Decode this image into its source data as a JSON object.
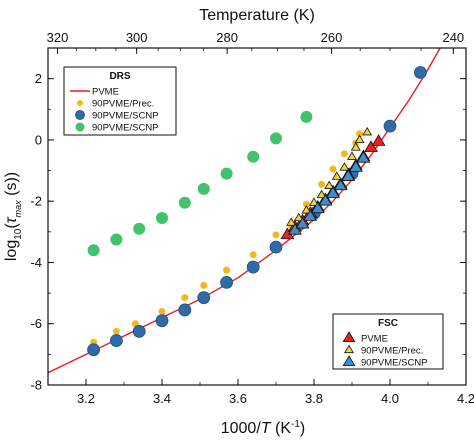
{
  "chart_data": {
    "type": "scatter",
    "title": "",
    "xlabel_parts": [
      "1000/",
      "T",
      " (K",
      "-1",
      ")"
    ],
    "ylabel_parts": [
      "log",
      "10",
      "(",
      "τ",
      "max",
      " (s))"
    ],
    "top_xlabel": "Temperature (K)",
    "xlim": [
      3.1,
      4.2
    ],
    "ylim": [
      -8,
      3
    ],
    "x_ticks": [
      3.2,
      3.4,
      3.6,
      3.8,
      4.0,
      4.2
    ],
    "x_tick_labels": [
      "3.2",
      "3.4",
      "3.6",
      "3.8",
      "4.0",
      "4.2"
    ],
    "y_ticks": [
      -8,
      -6,
      -4,
      -2,
      0,
      2
    ],
    "y_tick_labels": [
      "-8",
      "-6",
      "-4",
      "-2",
      "0",
      "2"
    ],
    "top_ticks": [
      320,
      300,
      280,
      260,
      240
    ],
    "top_tick_labels": [
      "320",
      "300",
      "280",
      "260",
      "240"
    ],
    "grid": false,
    "legends": [
      {
        "title": "DRS",
        "placement": "top-left",
        "entries": [
          "PVME",
          "90PVME/Prec.",
          "90PVME/SCNP",
          "90PVME/SCNP"
        ]
      },
      {
        "title": "FSC",
        "placement": "bottom-right",
        "entries": [
          "PVME",
          "90PVME/Prec.",
          "90PVME/SCNP"
        ]
      }
    ],
    "series": [
      {
        "name": "PVME",
        "group": "DRS",
        "kind": "line",
        "color": "#e8201e",
        "x": [
          3.1,
          3.2,
          3.3,
          3.4,
          3.5,
          3.6,
          3.7,
          3.8,
          3.85,
          3.9,
          3.95,
          4.0,
          4.05,
          4.1,
          4.15
        ],
        "y": [
          -7.6,
          -7.0,
          -6.4,
          -5.8,
          -5.2,
          -4.5,
          -3.6,
          -2.6,
          -2.0,
          -1.3,
          -0.5,
          0.4,
          1.3,
          2.3,
          3.4
        ]
      },
      {
        "name": "90PVME/Prec.",
        "group": "DRS",
        "kind": "circle",
        "color": "#f5b81c",
        "size": "small",
        "x": [
          3.22,
          3.28,
          3.33,
          3.4,
          3.46,
          3.51,
          3.57,
          3.64,
          3.7,
          3.74,
          3.78,
          3.82,
          3.85,
          3.88,
          3.91,
          3.92
        ],
        "y": [
          -6.6,
          -6.25,
          -6.0,
          -5.6,
          -5.15,
          -4.75,
          -4.25,
          -3.75,
          -3.1,
          -2.8,
          -2.1,
          -1.45,
          -0.95,
          -0.45,
          -0.1,
          0.2
        ]
      },
      {
        "name": "90PVME/SCNP",
        "group": "DRS",
        "kind": "circle",
        "color": "#2f6ba8",
        "size": "large",
        "x": [
          3.22,
          3.28,
          3.34,
          3.4,
          3.46,
          3.51,
          3.57,
          3.64,
          3.7,
          3.8,
          3.9,
          4.0,
          4.08
        ],
        "y": [
          -6.85,
          -6.55,
          -6.25,
          -5.9,
          -5.55,
          -5.15,
          -4.65,
          -4.15,
          -3.5,
          -2.4,
          -1.1,
          0.45,
          2.2
        ]
      },
      {
        "name": "90PVME/SCNP",
        "group": "DRS",
        "kind": "circle",
        "color": "#3fc46b",
        "size": "large",
        "x": [
          3.22,
          3.28,
          3.34,
          3.4,
          3.46,
          3.51,
          3.57,
          3.64,
          3.7,
          3.78
        ],
        "y": [
          -3.6,
          -3.25,
          -2.9,
          -2.55,
          -2.05,
          -1.6,
          -1.1,
          -0.55,
          0.05,
          0.75
        ]
      },
      {
        "name": "PVME",
        "group": "FSC",
        "kind": "triangle",
        "color": "#e8201e",
        "size": "large",
        "x": [
          3.73,
          3.75,
          3.77,
          3.79,
          3.81,
          3.83,
          3.85,
          3.87,
          3.89,
          3.91,
          3.93,
          3.95,
          3.97
        ],
        "y": [
          -3.1,
          -2.85,
          -2.65,
          -2.4,
          -2.2,
          -1.95,
          -1.7,
          -1.45,
          -1.15,
          -0.85,
          -0.55,
          -0.25,
          -0.05
        ]
      },
      {
        "name": "90PVME/Prec.",
        "group": "FSC",
        "kind": "triangle",
        "color": "#f5d23a",
        "size": "small",
        "x": [
          3.74,
          3.76,
          3.78,
          3.8,
          3.82,
          3.84,
          3.86,
          3.88,
          3.9,
          3.91,
          3.92,
          3.94
        ],
        "y": [
          -2.7,
          -2.55,
          -2.3,
          -2.05,
          -1.8,
          -1.5,
          -1.2,
          -0.9,
          -0.55,
          -0.25,
          0.0,
          0.25
        ]
      },
      {
        "name": "90PVME/SCNP",
        "group": "FSC",
        "kind": "triangle",
        "color": "#3a8fd0",
        "size": "large",
        "x": [
          3.75,
          3.77,
          3.79,
          3.81,
          3.83,
          3.85,
          3.87,
          3.89,
          3.91,
          3.93
        ],
        "y": [
          -2.95,
          -2.75,
          -2.5,
          -2.25,
          -2.0,
          -1.75,
          -1.5,
          -1.2,
          -0.9,
          -0.6
        ]
      }
    ]
  }
}
